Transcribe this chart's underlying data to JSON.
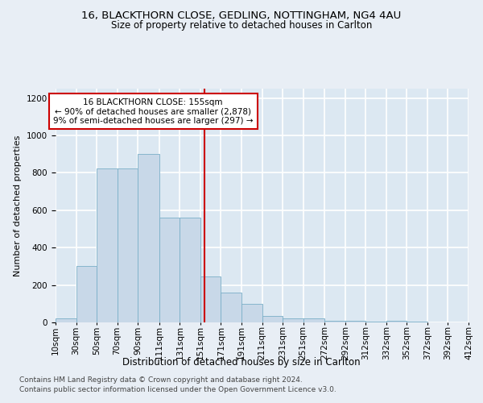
{
  "title": "16, BLACKTHORN CLOSE, GEDLING, NOTTINGHAM, NG4 4AU",
  "subtitle": "Size of property relative to detached houses in Carlton",
  "xlabel": "Distribution of detached houses by size in Carlton",
  "ylabel": "Number of detached properties",
  "bar_color": "#c8d8e8",
  "bar_edge_color": "#7aafc8",
  "background_color": "#dce8f2",
  "fig_color": "#e8eef5",
  "grid_color": "#ffffff",
  "vline_color": "#cc0000",
  "vline_x": 155,
  "annotation_text": "16 BLACKTHORN CLOSE: 155sqm\n← 90% of detached houses are smaller (2,878)\n9% of semi-detached houses are larger (297) →",
  "bin_edges": [
    10,
    30,
    50,
    70,
    90,
    111,
    131,
    151,
    171,
    191,
    211,
    231,
    251,
    272,
    292,
    312,
    332,
    352,
    372,
    392,
    412
  ],
  "bar_heights": [
    20,
    300,
    825,
    825,
    900,
    560,
    560,
    245,
    160,
    100,
    35,
    20,
    20,
    10,
    8,
    5,
    8,
    5,
    2,
    2
  ],
  "footer_line1": "Contains HM Land Registry data © Crown copyright and database right 2024.",
  "footer_line2": "Contains public sector information licensed under the Open Government Licence v3.0.",
  "ylim": [
    0,
    1250
  ],
  "yticks": [
    0,
    200,
    400,
    600,
    800,
    1000,
    1200
  ],
  "title_fontsize": 9.5,
  "subtitle_fontsize": 8.5,
  "ylabel_fontsize": 8,
  "xlabel_fontsize": 8.5,
  "tick_fontsize": 7.5,
  "footer_fontsize": 6.5,
  "annot_fontsize": 7.5
}
